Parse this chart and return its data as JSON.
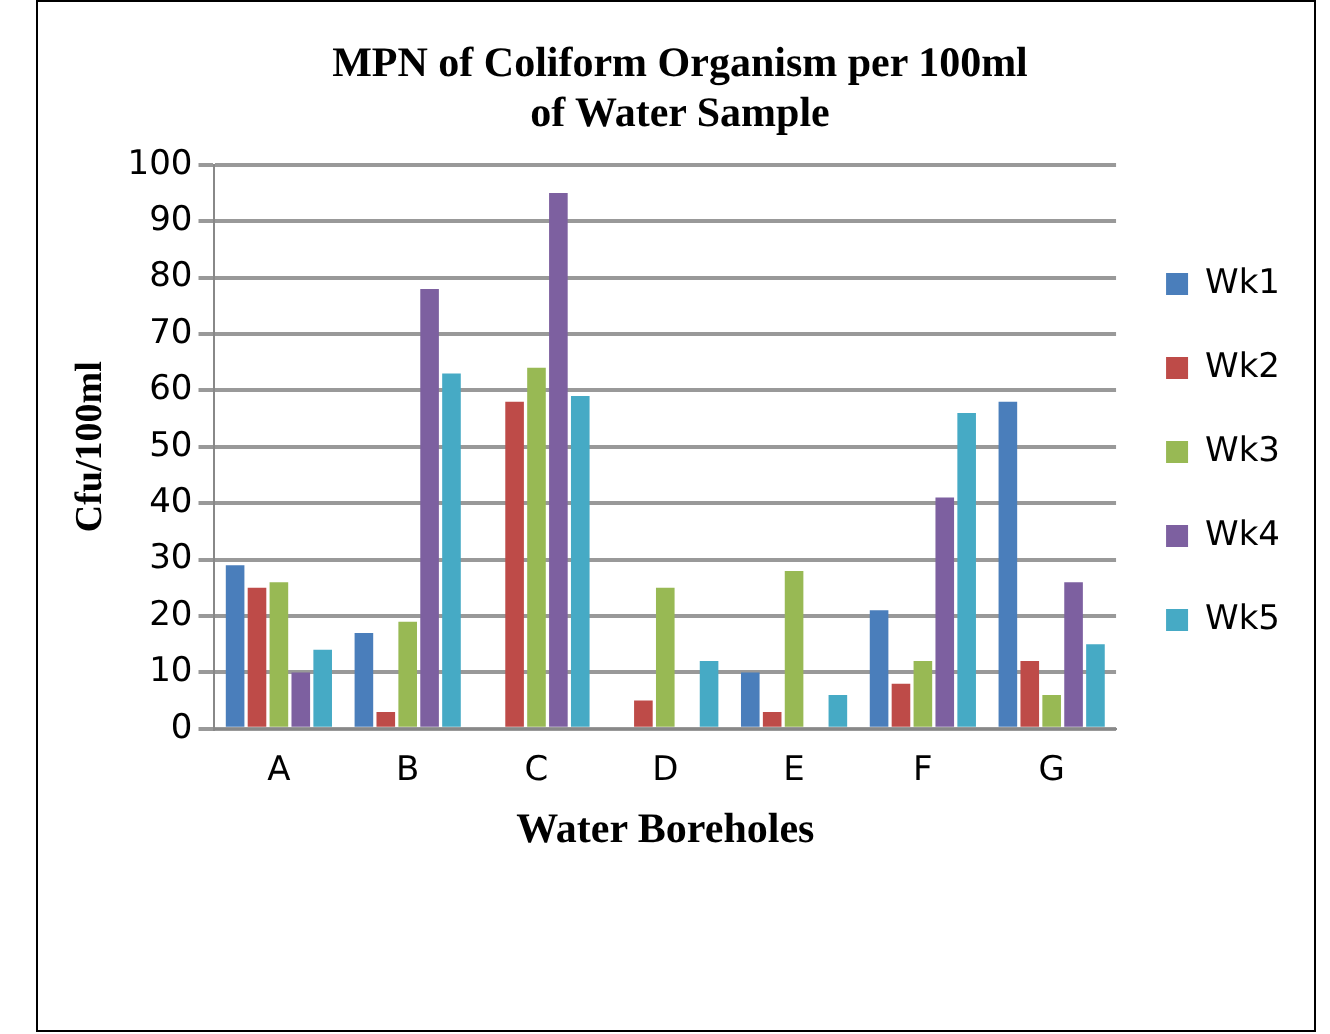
{
  "chart_data": {
    "type": "bar",
    "title": "MPN of Coliform Organism per 100ml of Water Sample",
    "xlabel": "Water Boreholes",
    "ylabel": "Cfu/100ml",
    "categories": [
      "A",
      "B",
      "C",
      "D",
      "E",
      "F",
      "G"
    ],
    "series": [
      {
        "name": "Wk1",
        "color": "#4a7ebb",
        "values": [
          29,
          17,
          0,
          0,
          10,
          21,
          58
        ]
      },
      {
        "name": "Wk2",
        "color": "#be4b48",
        "values": [
          25,
          3,
          58,
          5,
          3,
          8,
          12
        ]
      },
      {
        "name": "Wk3",
        "color": "#98b954",
        "values": [
          26,
          19,
          64,
          25,
          28,
          12,
          6
        ]
      },
      {
        "name": "Wk4",
        "color": "#7d60a0",
        "values": [
          10,
          78,
          95,
          0,
          0,
          41,
          26
        ]
      },
      {
        "name": "Wk5",
        "color": "#46aac5",
        "values": [
          14,
          63,
          59,
          12,
          6,
          56,
          15
        ]
      }
    ],
    "ylim": [
      0,
      100
    ],
    "yticks": [
      0,
      10,
      20,
      30,
      40,
      50,
      60,
      70,
      80,
      90,
      100
    ],
    "grid": "y",
    "legend": "right"
  }
}
